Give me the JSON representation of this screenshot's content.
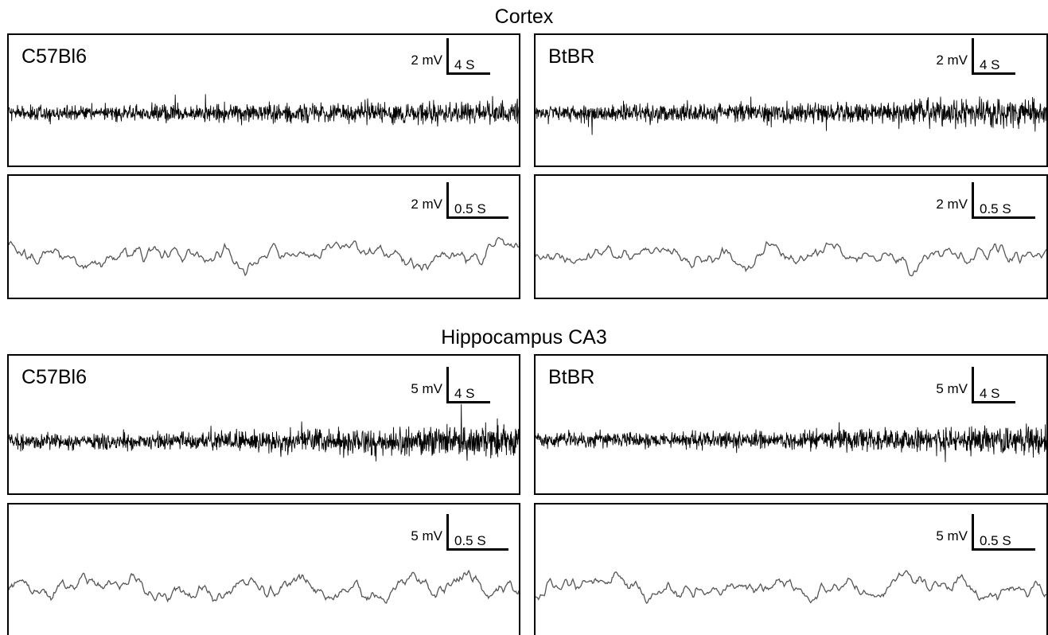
{
  "figure": {
    "sections": [
      {
        "title": "Cortex",
        "panels": [
          {
            "strain": "C57Bl6",
            "amplitude_scale": "2 mV",
            "time_scale": "4 S",
            "trace": "compressed"
          },
          {
            "strain": "BtBR",
            "amplitude_scale": "2 mV",
            "time_scale": "4 S",
            "trace": "compressed"
          },
          {
            "strain": "",
            "amplitude_scale": "2 mV",
            "time_scale": "0.5 S",
            "trace": "expanded"
          },
          {
            "strain": "",
            "amplitude_scale": "2 mV",
            "time_scale": "0.5 S",
            "trace": "expanded"
          }
        ]
      },
      {
        "title": "Hippocampus CA3",
        "panels": [
          {
            "strain": "C57Bl6",
            "amplitude_scale": "5 mV",
            "time_scale": "4 S",
            "trace": "compressed"
          },
          {
            "strain": "BtBR",
            "amplitude_scale": "5 mV",
            "time_scale": "4 S",
            "trace": "compressed"
          },
          {
            "strain": "",
            "amplitude_scale": "5 mV",
            "time_scale": "0.5 S",
            "trace": "expanded"
          },
          {
            "strain": "",
            "amplitude_scale": "5 mV",
            "time_scale": "0.5 S",
            "trace": "expanded"
          }
        ]
      }
    ]
  },
  "chart_data": {
    "type": "line",
    "description_note": "",
    "trace_color": "#000000",
    "expanded_trace_color": "#555555"
  }
}
